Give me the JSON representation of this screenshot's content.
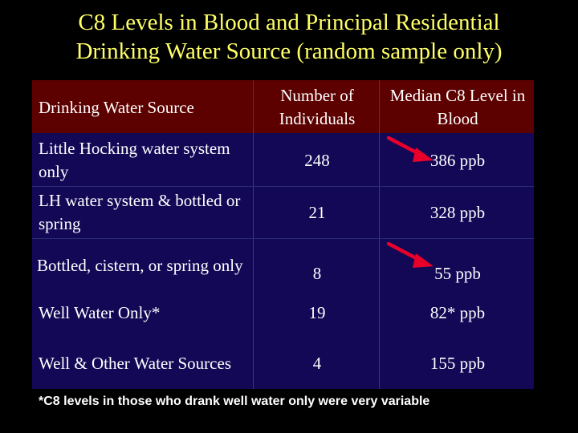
{
  "slide": {
    "title_line1": "C8 Levels in Blood and Principal Residential",
    "title_line2": "Drinking Water Source (random sample only)",
    "footnote": "*C8 levels in those who drank well water only were very variable",
    "accent_title": "#ffff66",
    "header_bg": "#5c0000",
    "table_bg": "#120856",
    "arrow_color": "#e8002a"
  },
  "table": {
    "headers": {
      "source": "Drinking Water Source",
      "count": "Number of Individuals",
      "median": "Median C8 Level in Blood"
    },
    "rows": [
      {
        "source": "Little Hocking water system only",
        "count": "248",
        "median": "386 ppb",
        "arrow": true
      },
      {
        "source": "LH water system & bottled or spring",
        "count": "21",
        "median": "328 ppb",
        "arrow": false
      },
      {
        "source": "Bottled, cistern, or spring only",
        "count": "8",
        "median": "55 ppb",
        "arrow": true
      },
      {
        "source": "Well Water Only*",
        "count": "19",
        "median": "82* ppb",
        "arrow": false
      },
      {
        "source": "Well & Other Water Sources",
        "count": "4",
        "median": "155 ppb",
        "arrow": false
      }
    ]
  }
}
